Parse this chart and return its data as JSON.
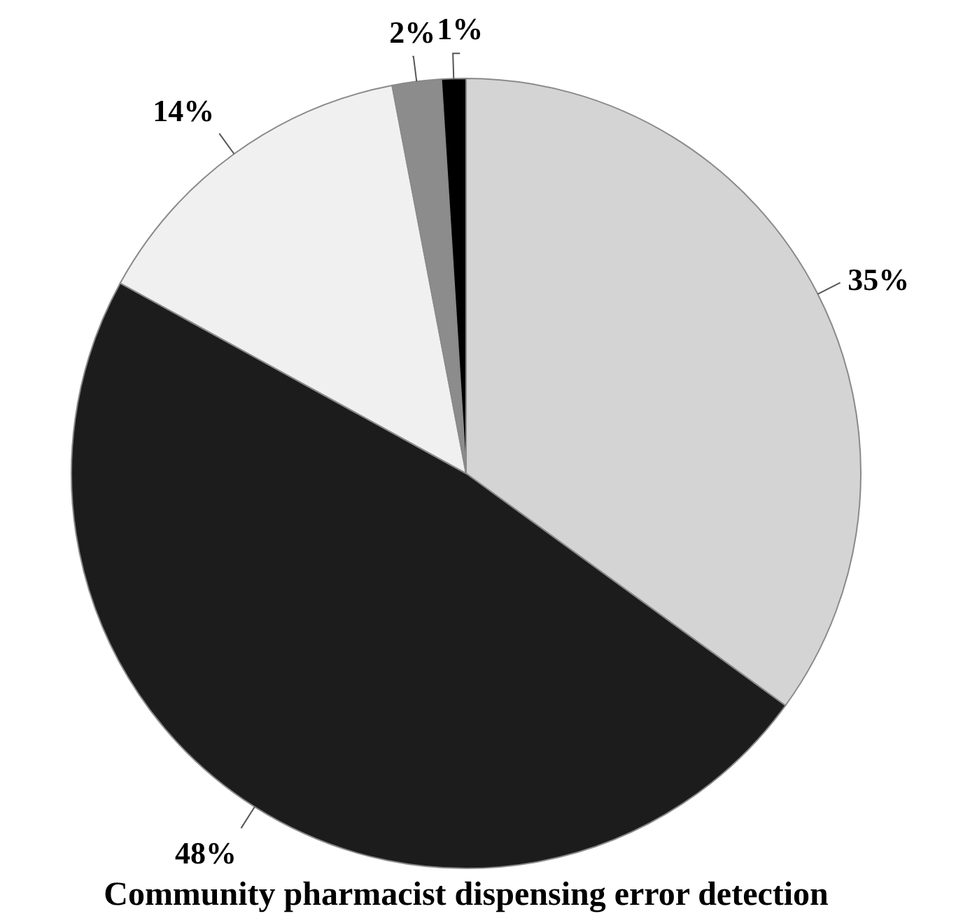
{
  "chart_data": {
    "type": "pie",
    "title": "Community pharmacist dispensing error detection",
    "categories": [
      null,
      null,
      null,
      null,
      null
    ],
    "values": [
      35,
      48,
      14,
      2,
      1
    ],
    "value_labels": [
      "35%",
      "48%",
      "14%",
      "2%",
      "1%"
    ],
    "colors": [
      "#d4d4d4",
      "#1c1c1c",
      "#f0f0f0",
      "#8c8c8c",
      "#000000"
    ]
  }
}
